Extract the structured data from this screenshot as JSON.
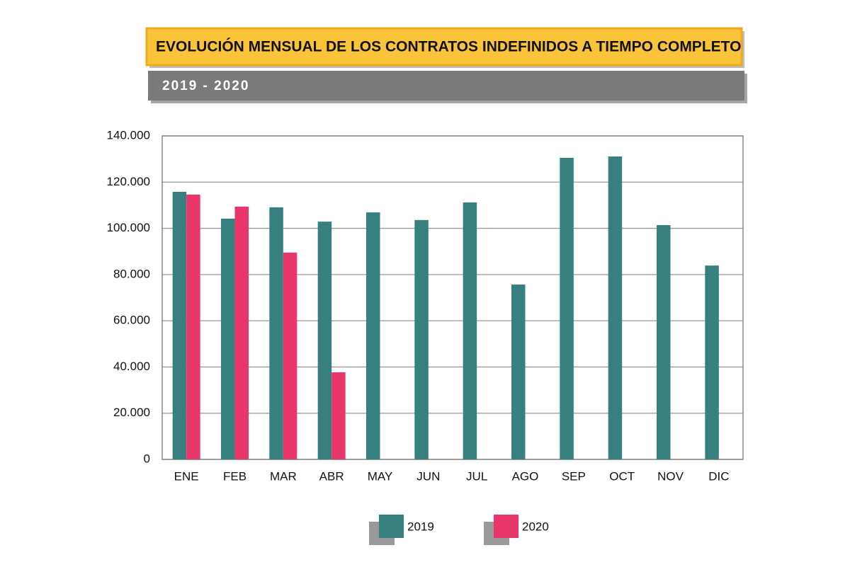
{
  "chart_data": {
    "type": "bar",
    "title": "EVOLUCIÓN MENSUAL DE LOS CONTRATOS INDEFINIDOS A TIEMPO COMPLETO",
    "subtitle": "2019 - 2020",
    "categories": [
      "ENE",
      "FEB",
      "MAR",
      "ABR",
      "MAY",
      "JUN",
      "JUL",
      "AGO",
      "SEP",
      "OCT",
      "NOV",
      "DIC"
    ],
    "series": [
      {
        "name": "2019",
        "color": "#37807f",
        "values": [
          115800,
          104200,
          109100,
          102900,
          106900,
          103600,
          111200,
          75700,
          130500,
          131100,
          101400,
          83900
        ]
      },
      {
        "name": "2020",
        "color": "#e8366a",
        "values": [
          114600,
          109400,
          89500,
          37700,
          null,
          null,
          null,
          null,
          null,
          null,
          null,
          null
        ]
      }
    ],
    "ylim": [
      0,
      140000
    ],
    "yticks": [
      0,
      {
        "value": 20000,
        "label": "20.000"
      },
      {
        "value": 40000,
        "label": "40.000"
      },
      {
        "value": 60000,
        "label": "60.000"
      },
      {
        "value": 80000,
        "label": "80.000"
      },
      {
        "value": 100000,
        "label": "100.000"
      },
      {
        "value": 120000,
        "label": "120.000"
      },
      {
        "value": 140000,
        "label": "140.000"
      }
    ],
    "grid": true
  }
}
